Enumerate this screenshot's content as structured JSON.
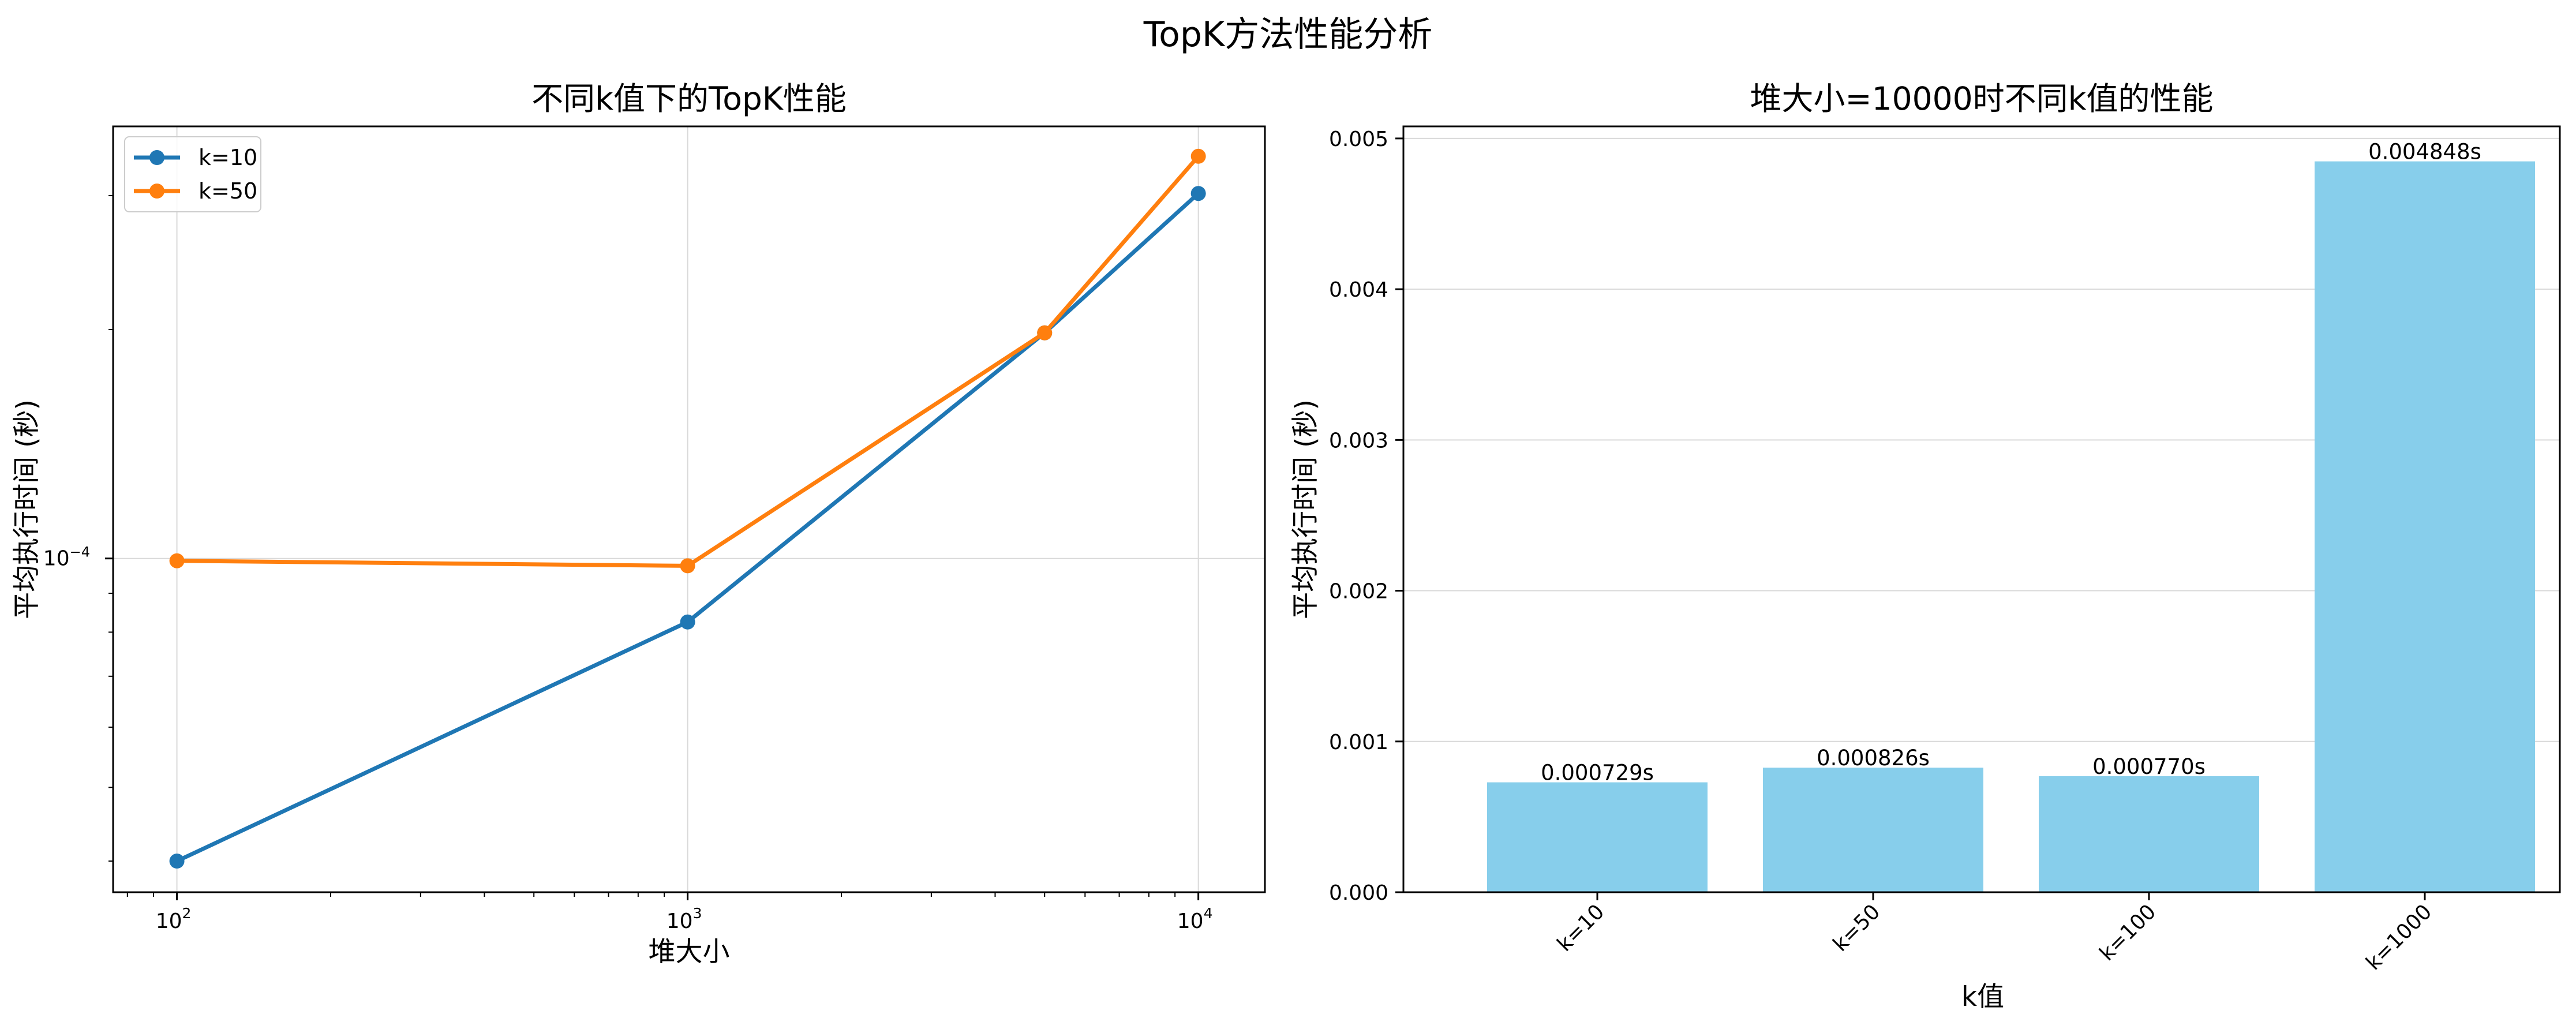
{
  "suptitle": "TopK方法性能分析",
  "chart_data": [
    {
      "type": "line",
      "title": "不同k值下的TopK性能",
      "xlabel": "堆大小",
      "ylabel": "平均执行时间 (秒)",
      "xscale": "log",
      "yscale": "log",
      "xlim": [
        75,
        13500
      ],
      "ylim": [
        3.64e-05,
        0.0
      ],
      "ylim_log": [
        3.64e-05,
        0.00037
      ],
      "xticks": [
        {
          "value": 100,
          "base": "10",
          "exp": "2"
        },
        {
          "value": 1000,
          "base": "10",
          "exp": "3"
        },
        {
          "value": 10000,
          "base": "10",
          "exp": "4"
        }
      ],
      "yticks": [
        {
          "value": 0.0001,
          "base": "10",
          "exp": "−4"
        }
      ],
      "grid": true,
      "legend_position": "upper-left",
      "x": [
        100,
        1000,
        5000,
        10000
      ],
      "series": [
        {
          "name": "k=10",
          "color": "#1f77b4",
          "values": [
            4e-05,
            8.25e-05,
            0.000198,
            0.000302
          ]
        },
        {
          "name": "k=50",
          "color": "#ff7f0e",
          "values": [
            9.93e-05,
            9.78e-05,
            0.000198,
            0.000338
          ]
        }
      ]
    },
    {
      "type": "bar",
      "title": "堆大小=10000时不同k值的性能",
      "xlabel": "k值",
      "ylabel": "平均执行时间 (秒)",
      "ylim": [
        0,
        0.00508
      ],
      "yticks": [
        "0.000",
        "0.001",
        "0.002",
        "0.003",
        "0.004",
        "0.005"
      ],
      "ytick_values": [
        0,
        0.001,
        0.002,
        0.003,
        0.004,
        0.005
      ],
      "grid": true,
      "bar_color": "#87ceeb",
      "categories": [
        "k=10",
        "k=50",
        "k=100",
        "k=1000"
      ],
      "values": [
        0.000729,
        0.000826,
        0.00077,
        0.004848
      ],
      "value_labels": [
        "0.000729s",
        "0.000826s",
        "0.000770s",
        "0.004848s"
      ]
    }
  ]
}
